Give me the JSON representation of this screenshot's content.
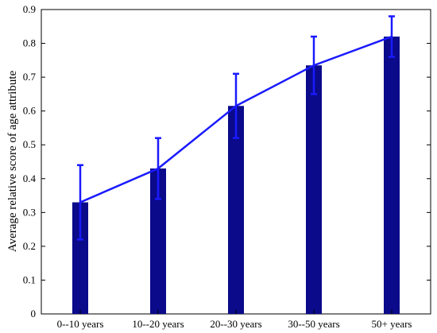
{
  "chart_data": {
    "type": "bar",
    "title": "",
    "xlabel": "",
    "ylabel": "Average relative score of age attribute",
    "categories": [
      "0--10 years",
      "10--20 years",
      "20--30 years",
      "30--50 years",
      "50+ years"
    ],
    "values": [
      0.33,
      0.43,
      0.615,
      0.735,
      0.82
    ],
    "error_upper": [
      0.44,
      0.52,
      0.71,
      0.82,
      0.88
    ],
    "error_lower": [
      0.22,
      0.34,
      0.52,
      0.65,
      0.76
    ],
    "line_overlay": true,
    "ylim": [
      0,
      0.9
    ],
    "yticks": [
      "0",
      "0.1",
      "0.2",
      "0.3",
      "0.4",
      "0.5",
      "0.6",
      "0.7",
      "0.8",
      "0.9"
    ],
    "grid": false,
    "colors": {
      "bar": "#0a0a8a",
      "line": "#1a1aff",
      "errorbar": "#1a1aff",
      "axis": "#000000"
    }
  }
}
